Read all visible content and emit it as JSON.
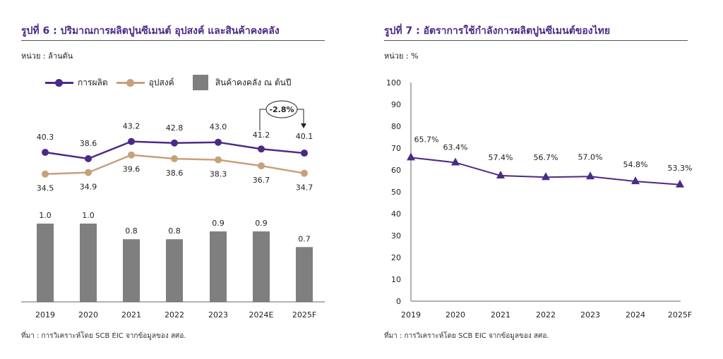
{
  "colors": {
    "title": "#4b2a86",
    "production": "#4b2a86",
    "demand": "#c8a07a",
    "inventory": "#7f7f7f",
    "utilization": "#4b2a86",
    "axis": "#666666"
  },
  "left": {
    "title": "รูปที่ 6 : ปริมาณการผลิตปูนซีเมนต์ อุปสงค์ และสินค้าคงคลัง",
    "unit": "หน่วย : ล้านตัน",
    "legend": {
      "production": "การผลิต",
      "demand": "อุปสงค์",
      "inventory": "สินค้าคงคลัง ณ ต้นปี"
    },
    "annotation": "-2.8%",
    "source": "ที่มา : การวิเคราะห์โดย SCB EIC จากข้อมูลของ สศอ."
  },
  "right": {
    "title": "รูปที่ 7 : อัตราการใช้กำลังการผลิตปูนซีเมนต์ของไทย",
    "unit": "หน่วย : %",
    "source": "ที่มา : การวิเคราะห์โดย SCB EIC จากข้อมูลของ สศอ."
  },
  "chart_data": [
    {
      "type": "line",
      "title": "รูปที่ 6 : ปริมาณการผลิตปูนซีเมนต์ อุปสงค์ และสินค้าคงคลัง",
      "ylabel": "ล้านตัน",
      "categories": [
        "2019",
        "2020",
        "2021",
        "2022",
        "2023",
        "2024E",
        "2025F"
      ],
      "series": [
        {
          "name": "การผลิต",
          "values": [
            40.3,
            38.6,
            43.2,
            42.8,
            43.0,
            41.2,
            40.1
          ],
          "labels": [
            "40.3",
            "38.6",
            "43.2",
            "42.8",
            "43.0",
            "41.2",
            "40.1"
          ]
        },
        {
          "name": "อุปสงค์",
          "values": [
            34.5,
            34.9,
            39.6,
            38.6,
            38.3,
            36.7,
            34.7
          ],
          "labels": [
            "34.5",
            "34.9",
            "39.6",
            "38.6",
            "38.3",
            "36.7",
            "34.7"
          ]
        }
      ],
      "bars": {
        "name": "สินค้าคงคลัง ณ ต้นปี",
        "type": "bar",
        "values": [
          1.0,
          1.0,
          0.8,
          0.8,
          0.9,
          0.9,
          0.7
        ],
        "labels": [
          "1.0",
          "1.0",
          "0.8",
          "0.8",
          "0.9",
          "0.9",
          "0.7"
        ]
      },
      "annotation": {
        "text": "-2.8%",
        "from": "2024E",
        "to": "2025F"
      },
      "legend": "top",
      "grid": false
    },
    {
      "type": "line",
      "title": "รูปที่ 7 : อัตราการใช้กำลังการผลิตปูนซีเมนต์ของไทย",
      "ylabel": "%",
      "categories": [
        "2019",
        "2020",
        "2021",
        "2022",
        "2023",
        "2024",
        "2025F"
      ],
      "series": [
        {
          "name": "อัตราการใช้กำลังการผลิต",
          "values": [
            65.7,
            63.4,
            57.4,
            56.7,
            57.0,
            54.8,
            53.3
          ],
          "labels": [
            "65.7%",
            "63.4%",
            "57.4%",
            "56.7%",
            "57.0%",
            "54.8%",
            "53.3%"
          ]
        }
      ],
      "ylim": [
        0,
        100
      ],
      "yticks": [
        "0",
        "10",
        "20",
        "30",
        "40",
        "50",
        "60",
        "70",
        "80",
        "90",
        "100"
      ],
      "grid": false
    }
  ]
}
